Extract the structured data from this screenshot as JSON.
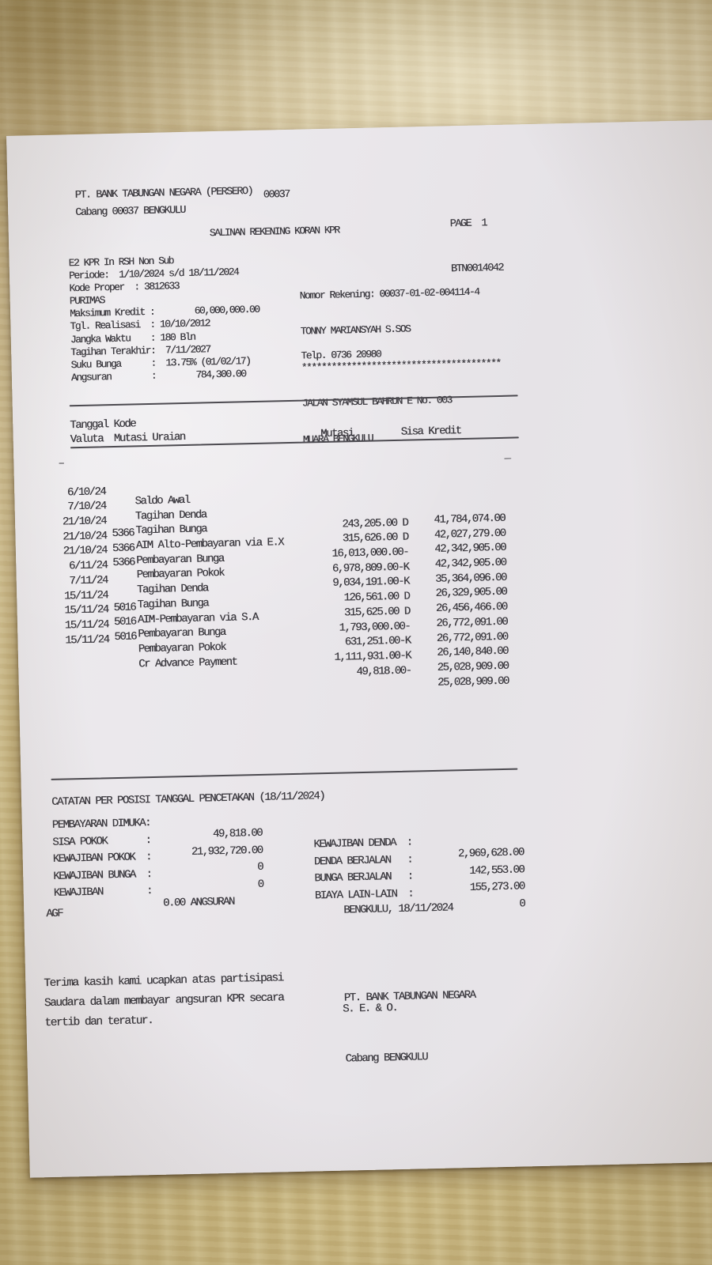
{
  "header": {
    "bank_line": "PT. BANK TABUNGAN NEGARA (PERSERO)",
    "branch_line": "Cabang 00037 BENGKULU",
    "code": "00037",
    "page": "PAGE  1",
    "doc_code": "BTN0014042",
    "title": "SALINAN REKENING KORAN KPR"
  },
  "info_left": {
    "lines": [
      "E2 KPR In RSH Non Sub",
      "Periode:  1/10/2024 s/d 18/11/2024",
      "Kode Proper  : 3812633",
      "PURIMAS",
      "Maksimum Kredit :        60,000,000.00",
      "Tgl. Realisasi  : 10/10/2012",
      "Jangka Waktu    : 180 Bln",
      "Tagihan Terakhir:  7/11/2027",
      "Suku Bunga      :  13.75% (01/02/17)",
      "Angsuran        :        784,300.00"
    ]
  },
  "info_right": {
    "account_line": "Nomor Rekening: 00037-01-02-004114-4",
    "customer_name": "TONNY MARIANSYAH S.SOS",
    "stars": "****************************************",
    "address_line1": "JALAN SYAMSUL BAHRUN E No. 003",
    "address_line2": "MUARA BENGKULU",
    "phone": "Telp. 0736 20980"
  },
  "table": {
    "header_line1": "Tanggal Kode",
    "header_line2": "Valuta  Mutasi Uraian",
    "col_mutasi": "Mutasi",
    "col_sisa": "Sisa Kredit",
    "rows": [
      {
        "date": "",
        "kode": "",
        "uraian": "Saldo Awal",
        "mutasi": "",
        "sisa": "41,784,074.00"
      },
      {
        "date": "6/10/24",
        "kode": "",
        "uraian": "Tagihan Denda",
        "mutasi": "243,205.00 D",
        "sisa": "42,027,279.00"
      },
      {
        "date": "7/10/24",
        "kode": "",
        "uraian": "Tagihan Bunga",
        "mutasi": "315,626.00 D",
        "sisa": "42,342,905.00"
      },
      {
        "date": "21/10/24",
        "kode": "5366",
        "uraian": "AIM Alto-Pembayaran via E.X",
        "mutasi": "16,013,000.00-",
        "sisa": "42,342,905.00"
      },
      {
        "date": "21/10/24",
        "kode": "5366",
        "uraian": "Pembayaran Bunga",
        "mutasi": "6,978,809.00-K",
        "sisa": "35,364,096.00"
      },
      {
        "date": "21/10/24",
        "kode": "5366",
        "uraian": "Pembayaran Pokok",
        "mutasi": "9,034,191.00-K",
        "sisa": "26,329,905.00"
      },
      {
        "date": "6/11/24",
        "kode": "",
        "uraian": "Tagihan Denda",
        "mutasi": "126,561.00 D",
        "sisa": "26,456,466.00"
      },
      {
        "date": "7/11/24",
        "kode": "",
        "uraian": "Tagihan Bunga",
        "mutasi": "315,625.00 D",
        "sisa": "26,772,091.00"
      },
      {
        "date": "15/11/24",
        "kode": "5016",
        "uraian": "AIM-Pembayaran via S.A",
        "mutasi": "1,793,000.00-",
        "sisa": "26,772,091.00"
      },
      {
        "date": "15/11/24",
        "kode": "5016",
        "uraian": "Pembayaran Bunga",
        "mutasi": "631,251.00-K",
        "sisa": "26,140,840.00"
      },
      {
        "date": "15/11/24",
        "kode": "5016",
        "uraian": "Pembayaran Pokok",
        "mutasi": "1,111,931.00-K",
        "sisa": "25,028,909.00"
      },
      {
        "date": "15/11/24",
        "kode": "",
        "uraian": "Cr Advance Payment",
        "mutasi": "49,818.00-",
        "sisa": "25,028,909.00"
      }
    ]
  },
  "marks": {
    "left_dash": "–",
    "saldo_underscore": "_"
  },
  "summary": {
    "title": "CATATAN PER POSISI TANGGAL PENCETAKAN (18/11/2024)",
    "rows": [
      {
        "ll": "PEMBAYARAN DIMUKA:",
        "lv": "49,818.00",
        "rl": "KEWAJIBAN DENDA  :",
        "rv": "2,969,628.00"
      },
      {
        "ll": "SISA POKOK       :",
        "lv": "21,932,720.00",
        "rl": "DENDA BERJALAN   :",
        "rv": "142,553.00"
      },
      {
        "ll": "KEWAJIBAN POKOK  :",
        "lv": "0",
        "rl": "BUNGA BERJALAN   :",
        "rv": "155,273.00"
      },
      {
        "ll": "KEWAJIBAN BUNGA  :",
        "lv": "0",
        "rl": "BIAYA LAIN-LAIN  :",
        "rv": "0"
      },
      {
        "ll": "KEWAJIBAN        :",
        "lv": "0.00 ANGSURAN",
        "rl": "",
        "rv": ""
      }
    ]
  },
  "footer": {
    "agf": "AGF",
    "place_date": "BENGKULU, 18/11/2024",
    "bank_name": "PT. BANK TABUNGAN NEGARA",
    "branch": "Cabang BENGKULU",
    "thanks_lines": [
      "Terima kasih kami ucapkan atas partisipasi",
      "Saudara dalam membayar angsuran KPR secara",
      "tertib dan teratur."
    ],
    "seo": "S. E. & O."
  }
}
